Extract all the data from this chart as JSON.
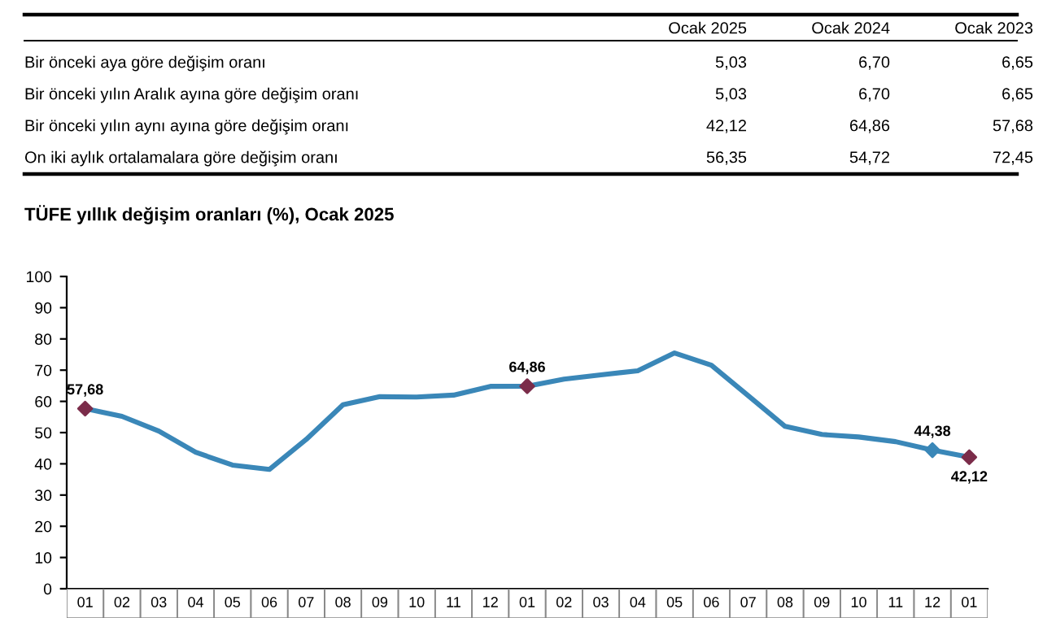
{
  "chart_data": [
    {
      "type": "other",
      "categories": [
        "Ocak 2025",
        "Ocak 2024",
        "Ocak 2023"
      ],
      "y_categories": [
        "Bir önceki aya göre değişim oranı",
        "Bir önceki yılın Aralık ayına göre değişim oranı",
        "Bir önceki yılın aynı ayına göre değişim oranı",
        "On iki aylık ortalamalara göre değişim oranı"
      ],
      "cell_labels": [
        [
          "5,03",
          "6,70",
          "6,65"
        ],
        [
          "5,03",
          "6,70",
          "6,65"
        ],
        [
          "42,12",
          "64,86",
          "57,68"
        ],
        [
          "56,35",
          "54,72",
          "72,45"
        ]
      ]
    },
    {
      "type": "line",
      "title": "TÜFE yıllık değişim oranları (%), Ocak 2025",
      "categories": [
        "01",
        "02",
        "03",
        "04",
        "05",
        "06",
        "07",
        "08",
        "09",
        "10",
        "11",
        "12",
        "01",
        "02",
        "03",
        "04",
        "05",
        "06",
        "07",
        "08",
        "09",
        "10",
        "11",
        "12",
        "01"
      ],
      "series": [
        {
          "color": "#3a87b8",
          "values": [
            57.68,
            55.2,
            50.5,
            43.7,
            39.6,
            38.2,
            47.8,
            58.9,
            61.5,
            61.4,
            62.0,
            64.8,
            64.86,
            67.1,
            68.5,
            69.8,
            75.5,
            71.6,
            61.8,
            52.0,
            49.4,
            48.6,
            47.1,
            44.38,
            42.12
          ],
          "value_labels": [
            "57,68",
            null,
            null,
            null,
            null,
            null,
            null,
            null,
            null,
            null,
            null,
            null,
            "64,86",
            null,
            null,
            null,
            null,
            null,
            null,
            null,
            null,
            null,
            null,
            "44,38",
            "42,12"
          ],
          "colors": [
            "#7b2c4a",
            null,
            null,
            null,
            null,
            null,
            null,
            null,
            null,
            null,
            null,
            null,
            "#7b2c4a",
            null,
            null,
            null,
            null,
            null,
            null,
            null,
            null,
            null,
            null,
            "#3a87b8",
            "#7b2c4a"
          ]
        }
      ],
      "ylim": [
        0,
        100
      ],
      "yticks": [
        0,
        10,
        20,
        30,
        40,
        50,
        60,
        70,
        80,
        90,
        100
      ],
      "grid": false,
      "legend": false,
      "line_style": "solid"
    }
  ]
}
